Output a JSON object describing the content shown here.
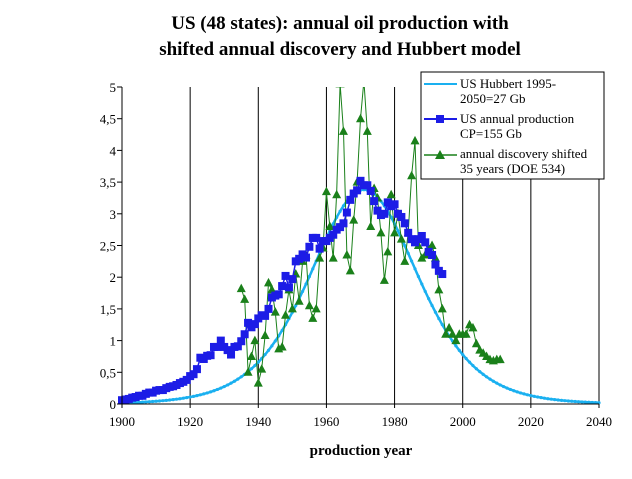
{
  "chart_data": {
    "type": "line",
    "title_lines": [
      "US (48 states): annual oil production with",
      "shifted annual discovery and Hubbert model"
    ],
    "xlabel": "production year",
    "ylabel": "",
    "xlim": [
      1900,
      2040
    ],
    "ylim": [
      0,
      5
    ],
    "x_ticks": [
      "1900",
      "1920",
      "1940",
      "1960",
      "1980",
      "2000",
      "2020",
      "2040"
    ],
    "y_ticks": [
      "0",
      "0,5",
      "1",
      "1,5",
      "2",
      "2,5",
      "3",
      "3,5",
      "4",
      "4,5",
      "5"
    ],
    "grid": "vertical",
    "legend_position": "top-right",
    "colors": {
      "hubbert": "#1ab0f0",
      "production": "#1c1ce6",
      "discovery": "#1a801a"
    },
    "legend": [
      {
        "key": "hubbert",
        "lines": [
          "US Hubbert  1995-",
          "2050=27 Gb"
        ]
      },
      {
        "key": "production",
        "lines": [
          "US annual production",
          "CP=155 Gb"
        ]
      },
      {
        "key": "discovery",
        "lines": [
          "annual discovery shifted",
          "35 years (DOE 534)"
        ]
      }
    ],
    "series": [
      {
        "key": "hubbert",
        "name": "US Hubbert 1995-2050=27 Gb",
        "marker": "dot",
        "model": {
          "peak_year": 1971,
          "peak_value": 3.38,
          "k": 0.094,
          "x_start": 1900,
          "x_end": 2040
        }
      },
      {
        "key": "production",
        "name": "US annual production CP=155 Gb",
        "marker": "square",
        "x": [
          1900,
          1901,
          1902,
          1903,
          1904,
          1905,
          1906,
          1907,
          1908,
          1909,
          1910,
          1911,
          1912,
          1913,
          1914,
          1915,
          1916,
          1917,
          1918,
          1919,
          1920,
          1921,
          1922,
          1923,
          1924,
          1925,
          1926,
          1927,
          1928,
          1929,
          1930,
          1931,
          1932,
          1933,
          1934,
          1935,
          1936,
          1937,
          1938,
          1939,
          1940,
          1941,
          1942,
          1943,
          1944,
          1945,
          1946,
          1947,
          1948,
          1949,
          1950,
          1951,
          1952,
          1953,
          1954,
          1955,
          1956,
          1957,
          1958,
          1959,
          1960,
          1961,
          1962,
          1963,
          1964,
          1965,
          1966,
          1967,
          1968,
          1969,
          1970,
          1971,
          1972,
          1973,
          1974,
          1975,
          1976,
          1977,
          1978,
          1979,
          1980,
          1981,
          1982,
          1983,
          1984,
          1985,
          1986,
          1987,
          1988,
          1989,
          1990,
          1991,
          1992,
          1993,
          1994
        ],
        "values": [
          0.06,
          0.07,
          0.08,
          0.1,
          0.11,
          0.13,
          0.13,
          0.16,
          0.18,
          0.18,
          0.21,
          0.22,
          0.22,
          0.25,
          0.27,
          0.28,
          0.3,
          0.33,
          0.35,
          0.38,
          0.44,
          0.47,
          0.55,
          0.73,
          0.71,
          0.76,
          0.77,
          0.9,
          0.9,
          1.0,
          0.9,
          0.85,
          0.78,
          0.9,
          0.91,
          0.99,
          1.1,
          1.28,
          1.21,
          1.26,
          1.35,
          1.4,
          1.39,
          1.5,
          1.68,
          1.71,
          1.73,
          1.86,
          2.02,
          1.84,
          1.97,
          2.25,
          2.29,
          2.36,
          2.31,
          2.48,
          2.62,
          2.62,
          2.45,
          2.57,
          2.57,
          2.62,
          2.67,
          2.75,
          2.79,
          2.85,
          3.02,
          3.22,
          3.32,
          3.37,
          3.52,
          3.45,
          3.45,
          3.36,
          3.2,
          3.05,
          2.98,
          3.0,
          3.18,
          3.12,
          3.15,
          3.0,
          2.95,
          2.85,
          2.7,
          2.6,
          2.55,
          2.6,
          2.65,
          2.55,
          2.4,
          2.35,
          2.2,
          2.1,
          2.05
        ]
      },
      {
        "key": "discovery",
        "name": "annual discovery shifted 35 years (DOE 534)",
        "marker": "triangle",
        "x": [
          1935,
          1936,
          1937,
          1938,
          1939,
          1940,
          1941,
          1942,
          1943,
          1944,
          1945,
          1946,
          1947,
          1948,
          1949,
          1950,
          1951,
          1952,
          1953,
          1954,
          1955,
          1956,
          1957,
          1958,
          1959,
          1960,
          1961,
          1962,
          1963,
          1964,
          1965,
          1966,
          1967,
          1968,
          1969,
          1970,
          1971,
          1972,
          1973,
          1974,
          1975,
          1976,
          1977,
          1978,
          1979,
          1980,
          1981,
          1982,
          1983,
          1984,
          1985,
          1986,
          1987,
          1988,
          1989,
          1990,
          1991,
          1992,
          1993,
          1994,
          1995,
          1996,
          1997,
          1998,
          1999,
          2000,
          2001,
          2002,
          2003,
          2004,
          2005,
          2006,
          2007,
          2008,
          2009,
          2010,
          2011
        ],
        "values": [
          1.82,
          1.65,
          0.5,
          0.75,
          1.0,
          0.33,
          0.55,
          1.08,
          1.91,
          1.8,
          1.45,
          0.87,
          0.9,
          1.4,
          1.8,
          1.5,
          2.05,
          1.62,
          2.25,
          2.35,
          1.55,
          1.35,
          1.5,
          2.3,
          2.46,
          3.35,
          2.8,
          2.3,
          3.3,
          5.05,
          4.3,
          2.35,
          2.1,
          2.9,
          3.5,
          4.5,
          5.1,
          4.3,
          2.8,
          3.4,
          3.25,
          2.7,
          1.95,
          2.4,
          3.3,
          2.7,
          3.0,
          2.6,
          2.25,
          2.7,
          3.6,
          4.15,
          2.5,
          2.3,
          2.35,
          2.45,
          2.5,
          2.3,
          1.8,
          1.5,
          1.1,
          1.2,
          1.1,
          1.0,
          1.1,
          1.1,
          1.1,
          1.25,
          1.2,
          0.95,
          0.85,
          0.8,
          0.75,
          0.7,
          0.68,
          0.7,
          0.7
        ]
      }
    ]
  }
}
